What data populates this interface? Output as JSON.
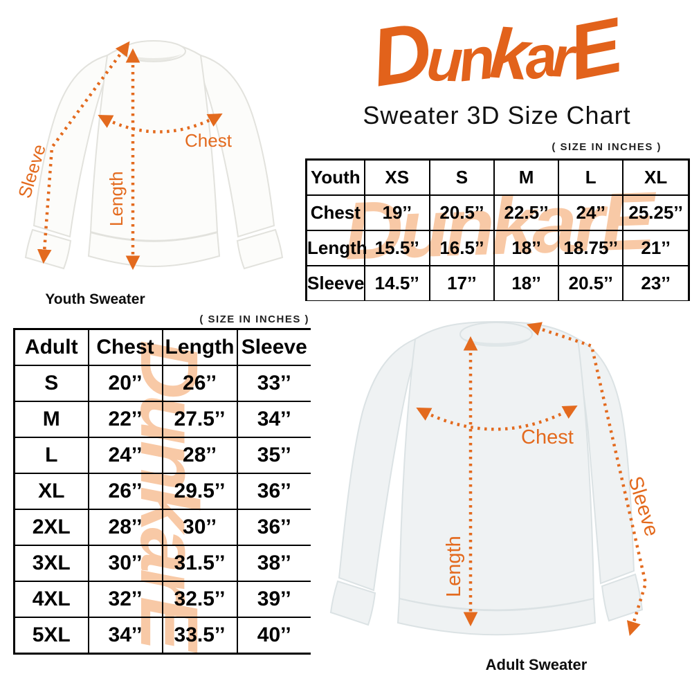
{
  "brand": {
    "logo_text": "DunkarE",
    "subtitle": "Sweater 3D Size Chart"
  },
  "youth_section": {
    "units_note": "( SIZE IN INCHES )",
    "caption": "Youth Sweater",
    "diagram_labels": {
      "chest": "Chest",
      "length": "Length",
      "sleeve": "Sleeve"
    }
  },
  "adult_section": {
    "units_note": "( SIZE IN INCHES )",
    "caption": "Adult Sweater",
    "diagram_labels": {
      "chest": "Chest",
      "length": "Length",
      "sleeve": "Sleeve"
    }
  },
  "youth_table": {
    "header": [
      "Youth",
      "XS",
      "S",
      "M",
      "L",
      "XL"
    ],
    "rows": [
      [
        "Chest",
        "19’’",
        "20.5’’",
        "22.5’’",
        "24’’",
        "25.25’’"
      ],
      [
        "Length",
        "15.5’’",
        "16.5’’",
        "18’’",
        "18.75’’",
        "21’’"
      ],
      [
        "Sleeve",
        "14.5’’",
        "17’’",
        "18’’",
        "20.5’’",
        "23’’"
      ]
    ]
  },
  "adult_table": {
    "header": [
      "Adult",
      "Chest",
      "Length",
      "Sleeve"
    ],
    "rows": [
      [
        "S",
        "20’’",
        "26’’",
        "33’’"
      ],
      [
        "M",
        "22’’",
        "27.5’’",
        "34’’"
      ],
      [
        "L",
        "24’’",
        "28’’",
        "35’’"
      ],
      [
        "XL",
        "26’’",
        "29.5’’",
        "36’’"
      ],
      [
        "2XL",
        "28’’",
        "30’’",
        "36’’"
      ],
      [
        "3XL",
        "30’’",
        "31.5’’",
        "38’’"
      ],
      [
        "4XL",
        "32’’",
        "32.5’’",
        "39’’"
      ],
      [
        "5XL",
        "34’’",
        "33.5’’",
        "40’’"
      ]
    ]
  },
  "colors": {
    "accent": "#E2621B",
    "arrow": "#E36A1E",
    "watermark": "#F8C9A6",
    "text": "#111111"
  }
}
